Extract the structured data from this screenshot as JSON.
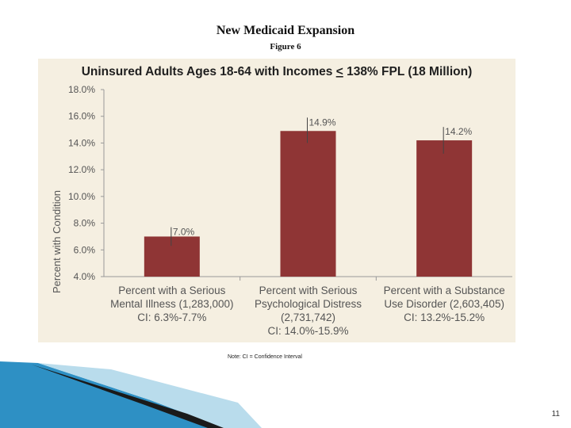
{
  "slide": {
    "title": "New Medicaid Expansion",
    "figure_label": "Figure 6",
    "note": "Note: CI = Confidence Interval",
    "page_number": "11"
  },
  "colors": {
    "panel_background": "#f5efe1",
    "bar": "#8f3535",
    "title_text": "#1f1f1f",
    "axis_text": "#555555",
    "decor_blue": "#2e90c4",
    "decor_light": "#b9dcec"
  },
  "chart_data": {
    "type": "bar",
    "title": "Uninsured Adults Ages 18-64 with Incomes < 138% FPL (18 Million)",
    "title_parts": {
      "before": "Uninsured Adults Ages 18-64 with Incomes ",
      "underlined": "<",
      "after": " 138% FPL (18 Million)"
    },
    "ylabel": "Percent with Condition",
    "xlabel": "",
    "ylim": [
      4.0,
      18.0
    ],
    "y_ticks": [
      4.0,
      6.0,
      8.0,
      10.0,
      12.0,
      14.0,
      16.0,
      18.0
    ],
    "y_tick_labels": [
      "4.0%",
      "6.0%",
      "8.0%",
      "10.0%",
      "12.0%",
      "14.0%",
      "16.0%",
      "18.0%"
    ],
    "grid": false,
    "categories": [
      {
        "lines": [
          "Percent with a Serious",
          "Mental Illness (1,283,000)",
          "CI: 6.3%-7.7%"
        ]
      },
      {
        "lines": [
          "Percent with Serious",
          "Psychological Distress",
          "(2,731,742)",
          "CI: 14.0%-15.9%"
        ]
      },
      {
        "lines": [
          "Percent with a Substance",
          "Use Disorder  (2,603,405)",
          "CI: 13.2%-15.2%"
        ]
      }
    ],
    "values": [
      7.0,
      14.9,
      14.2
    ],
    "value_labels": [
      "7.0%",
      "14.9%",
      "14.2%"
    ],
    "ci": [
      [
        6.3,
        7.7
      ],
      [
        14.0,
        15.9
      ],
      [
        13.2,
        15.2
      ]
    ]
  }
}
